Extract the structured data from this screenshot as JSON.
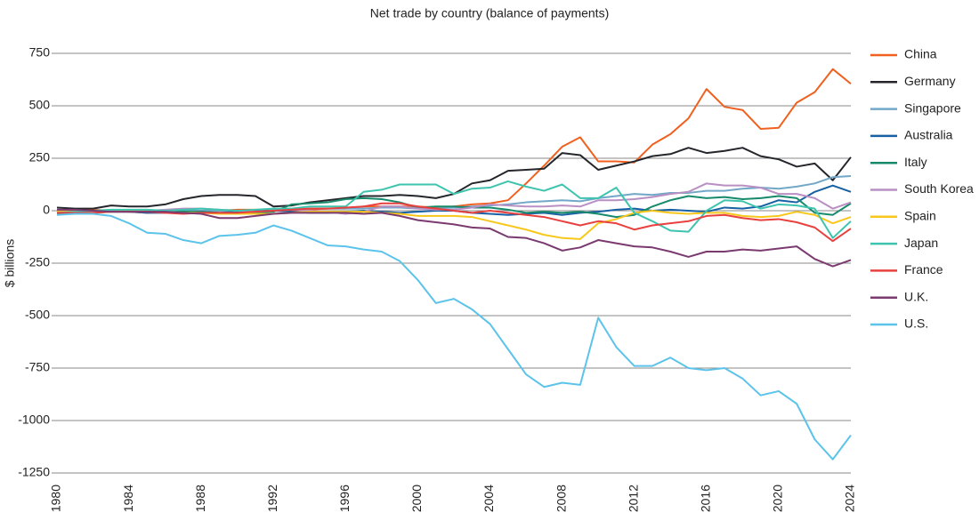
{
  "chart_data": {
    "type": "line",
    "title": "Net trade by country (balance of payments)",
    "y_label": "$ billions",
    "x": [
      1980,
      1981,
      1982,
      1983,
      1984,
      1985,
      1986,
      1987,
      1988,
      1989,
      1990,
      1991,
      1992,
      1993,
      1994,
      1995,
      1996,
      1997,
      1998,
      1999,
      2000,
      2001,
      2002,
      2003,
      2004,
      2005,
      2006,
      2007,
      2008,
      2009,
      2010,
      2011,
      2012,
      2013,
      2014,
      2015,
      2016,
      2017,
      2018,
      2019,
      2020,
      2021,
      2022,
      2023,
      2024
    ],
    "xlim": [
      1980,
      2024
    ],
    "xticks": [
      1980,
      1984,
      1988,
      1992,
      1996,
      2000,
      2004,
      2008,
      2012,
      2016,
      2020,
      2024
    ],
    "ylim": [
      -1250,
      750
    ],
    "yticks": [
      750,
      500,
      250,
      0,
      -250,
      -500,
      -750,
      -1000,
      -1250
    ],
    "grid": true,
    "series": [
      {
        "name": "China",
        "color": "#f0601f",
        "values": [
          -5,
          0,
          5,
          0,
          -5,
          -10,
          -5,
          -5,
          -5,
          0,
          5,
          5,
          5,
          0,
          5,
          10,
          10,
          20,
          20,
          20,
          20,
          15,
          20,
          30,
          35,
          50,
          130,
          215,
          305,
          350,
          235,
          235,
          230,
          315,
          365,
          440,
          580,
          495,
          480,
          390,
          395,
          515,
          565,
          675,
          605
        ]
      },
      {
        "name": "Germany",
        "color": "#24262b",
        "values": [
          15,
          10,
          10,
          25,
          20,
          20,
          30,
          55,
          70,
          75,
          75,
          70,
          20,
          25,
          40,
          50,
          60,
          70,
          70,
          75,
          70,
          60,
          80,
          130,
          145,
          190,
          195,
          200,
          275,
          265,
          195,
          215,
          235,
          260,
          270,
          300,
          275,
          285,
          300,
          260,
          245,
          210,
          225,
          145,
          255
        ]
      },
      {
        "name": "Singapore",
        "color": "#72a7c8",
        "values": [
          -5,
          -5,
          -5,
          -5,
          -5,
          -5,
          0,
          0,
          0,
          0,
          0,
          0,
          5,
          5,
          10,
          10,
          10,
          10,
          15,
          15,
          10,
          10,
          15,
          20,
          25,
          30,
          40,
          45,
          50,
          45,
          60,
          70,
          80,
          75,
          85,
          85,
          95,
          95,
          105,
          110,
          105,
          115,
          130,
          160,
          165
        ]
      },
      {
        "name": "Australia",
        "color": "#1760a4",
        "values": [
          -5,
          -10,
          -10,
          -5,
          -5,
          -10,
          -10,
          -5,
          -5,
          -10,
          -5,
          0,
          0,
          -5,
          -10,
          -10,
          -5,
          0,
          -5,
          -10,
          -5,
          0,
          0,
          -10,
          -15,
          -20,
          -15,
          -10,
          -20,
          -10,
          -5,
          5,
          10,
          0,
          5,
          0,
          -5,
          15,
          10,
          20,
          50,
          40,
          90,
          120,
          90
        ]
      },
      {
        "name": "Italy",
        "color": "#178a6c",
        "values": [
          -15,
          -15,
          -10,
          0,
          -5,
          -5,
          0,
          -5,
          -5,
          -10,
          -10,
          -10,
          -5,
          30,
          35,
          40,
          55,
          60,
          55,
          40,
          15,
          20,
          20,
          15,
          15,
          5,
          -10,
          -5,
          -10,
          -5,
          -15,
          -30,
          -20,
          20,
          50,
          70,
          60,
          65,
          55,
          60,
          70,
          60,
          -10,
          -20,
          35
        ]
      },
      {
        "name": "South Korea",
        "color": "#b98fc4",
        "values": [
          -5,
          -5,
          -5,
          0,
          0,
          0,
          5,
          10,
          10,
          5,
          0,
          -5,
          0,
          5,
          0,
          -5,
          -15,
          -5,
          20,
          20,
          10,
          5,
          5,
          15,
          30,
          25,
          20,
          20,
          25,
          20,
          50,
          50,
          55,
          65,
          80,
          90,
          130,
          120,
          120,
          110,
          80,
          80,
          60,
          10,
          40
        ]
      },
      {
        "name": "Spain",
        "color": "#f7c81b",
        "values": [
          -5,
          -5,
          -10,
          -5,
          0,
          0,
          -5,
          -10,
          -10,
          -15,
          -15,
          -15,
          -15,
          -10,
          -5,
          -5,
          -5,
          -5,
          -10,
          -15,
          -25,
          -25,
          -25,
          -30,
          -50,
          -70,
          -90,
          -115,
          -130,
          -135,
          -60,
          -40,
          -10,
          0,
          -10,
          -15,
          -10,
          -10,
          -25,
          -30,
          -25,
          -5,
          -20,
          -60,
          -30
        ]
      },
      {
        "name": "Japan",
        "color": "#3ec4ae",
        "values": [
          -10,
          -5,
          0,
          5,
          5,
          5,
          0,
          5,
          10,
          5,
          0,
          5,
          10,
          10,
          20,
          20,
          20,
          90,
          100,
          125,
          125,
          125,
          80,
          105,
          110,
          140,
          115,
          95,
          125,
          60,
          60,
          110,
          -10,
          -50,
          -95,
          -100,
          0,
          50,
          45,
          10,
          30,
          25,
          10,
          -130,
          -50
        ]
      },
      {
        "name": "France",
        "color": "#e8403f",
        "values": [
          -10,
          -10,
          -10,
          -5,
          -5,
          -5,
          -10,
          -15,
          -10,
          -10,
          -10,
          -5,
          0,
          5,
          10,
          10,
          15,
          20,
          35,
          35,
          20,
          10,
          0,
          -10,
          0,
          -10,
          -20,
          -30,
          -50,
          -70,
          -50,
          -60,
          -90,
          -70,
          -60,
          -50,
          -25,
          -20,
          -35,
          -45,
          -40,
          -55,
          -80,
          -145,
          -85
        ]
      },
      {
        "name": "U.K.",
        "color": "#7b3a6f",
        "values": [
          5,
          5,
          0,
          -5,
          -5,
          -5,
          -5,
          -10,
          -15,
          -35,
          -35,
          -25,
          -15,
          -10,
          -10,
          -10,
          -10,
          -15,
          -10,
          -25,
          -45,
          -55,
          -65,
          -80,
          -85,
          -125,
          -130,
          -155,
          -190,
          -175,
          -140,
          -155,
          -170,
          -175,
          -195,
          -220,
          -195,
          -195,
          -185,
          -190,
          -180,
          -170,
          -230,
          -265,
          -235
        ]
      },
      {
        "name": "U.S.",
        "color": "#5cc3ea",
        "values": [
          -20,
          -15,
          -15,
          -25,
          -60,
          -105,
          -110,
          -140,
          -155,
          -120,
          -115,
          -105,
          -70,
          -95,
          -130,
          -165,
          -170,
          -185,
          -195,
          -240,
          -330,
          -440,
          -420,
          -470,
          -540,
          -660,
          -780,
          -840,
          -820,
          -830,
          -510,
          -650,
          -740,
          -740,
          -700,
          -750,
          -760,
          -750,
          -800,
          -880,
          -860,
          -920,
          -1090,
          -1185,
          -1070
        ]
      }
    ]
  }
}
